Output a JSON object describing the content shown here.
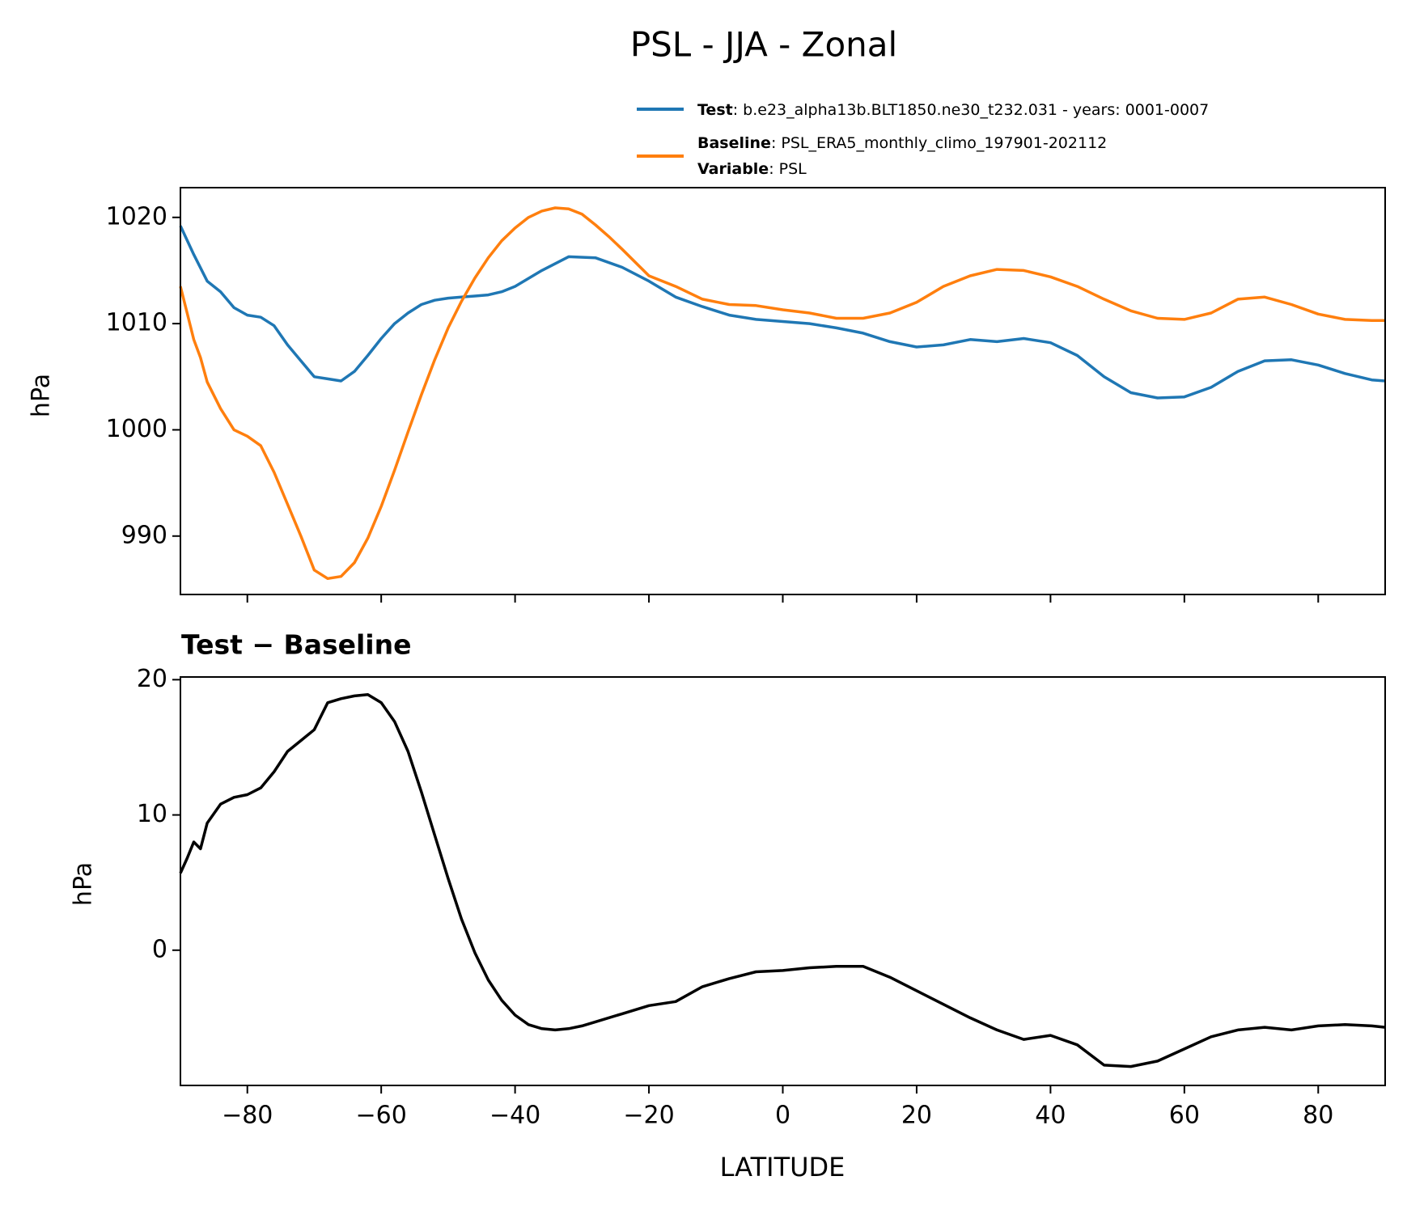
{
  "figure": {
    "title": "PSL - JJA - Zonal"
  },
  "legend": {
    "test_label": "Test",
    "test_text": ": b.e23_alpha13b.BLT1850.ne30_t232.031 - years: 0001-0007",
    "baseline_label": "Baseline",
    "baseline_text": ": PSL_ERA5_monthly_climo_197901-202112",
    "variable_label": "Variable",
    "variable_text": ": PSL"
  },
  "colors": {
    "test": "#1f77b4",
    "baseline": "#ff7f0e",
    "difference": "#000000"
  },
  "chart_data": [
    {
      "type": "line",
      "xlim": [
        -90,
        90
      ],
      "ylim": [
        984.5,
        1022.8
      ],
      "ylabel": "hPa",
      "yticks": [
        990,
        1000,
        1010,
        1020
      ],
      "xticks": [
        -80,
        -60,
        -40,
        -20,
        0,
        20,
        40,
        60,
        80
      ],
      "legend_position": "above-right",
      "series": [
        {
          "name": "Test",
          "x": [
            -90,
            -88,
            -86,
            -84,
            -82,
            -80,
            -78,
            -76,
            -74,
            -72,
            -70,
            -68,
            -66,
            -64,
            -62,
            -60,
            -58,
            -56,
            -54,
            -52,
            -50,
            -48,
            -46,
            -44,
            -42,
            -40,
            -36,
            -32,
            -28,
            -24,
            -20,
            -16,
            -12,
            -8,
            -4,
            0,
            4,
            8,
            12,
            16,
            20,
            24,
            28,
            32,
            36,
            40,
            44,
            48,
            52,
            56,
            60,
            64,
            68,
            72,
            76,
            80,
            84,
            88,
            90
          ],
          "y": [
            1019.2,
            1016.5,
            1014.0,
            1013.0,
            1011.5,
            1010.8,
            1010.6,
            1009.8,
            1008.0,
            1006.5,
            1005.0,
            1004.8,
            1004.6,
            1005.5,
            1007.0,
            1008.6,
            1010.0,
            1011.0,
            1011.8,
            1012.2,
            1012.4,
            1012.5,
            1012.6,
            1012.7,
            1013.0,
            1013.5,
            1015.0,
            1016.3,
            1016.2,
            1015.3,
            1014.0,
            1012.5,
            1011.6,
            1010.8,
            1010.4,
            1010.2,
            1010.0,
            1009.6,
            1009.1,
            1008.3,
            1007.8,
            1008.0,
            1008.5,
            1008.3,
            1008.6,
            1008.2,
            1007.0,
            1005.0,
            1003.5,
            1003.0,
            1003.1,
            1004.0,
            1005.5,
            1006.5,
            1006.6,
            1006.1,
            1005.3,
            1004.7,
            1004.6
          ]
        },
        {
          "name": "Baseline",
          "x": [
            -90,
            -89,
            -88,
            -87,
            -86,
            -84,
            -82,
            -80,
            -78,
            -76,
            -74,
            -72,
            -70,
            -68,
            -66,
            -64,
            -62,
            -60,
            -58,
            -56,
            -54,
            -52,
            -50,
            -48,
            -46,
            -44,
            -42,
            -40,
            -38,
            -36,
            -34,
            -32,
            -30,
            -28,
            -26,
            -24,
            -20,
            -16,
            -12,
            -8,
            -4,
            0,
            4,
            8,
            12,
            16,
            20,
            24,
            28,
            32,
            36,
            40,
            44,
            48,
            52,
            56,
            60,
            64,
            68,
            72,
            76,
            80,
            84,
            88,
            90
          ],
          "y": [
            1013.5,
            1011.0,
            1008.5,
            1006.8,
            1004.5,
            1002.0,
            1000.0,
            999.4,
            998.5,
            996.0,
            993.0,
            990.0,
            986.8,
            986.0,
            986.2,
            987.5,
            989.8,
            992.8,
            996.2,
            999.8,
            1003.3,
            1006.6,
            1009.6,
            1012.1,
            1014.3,
            1016.2,
            1017.8,
            1019.0,
            1020.0,
            1020.6,
            1020.9,
            1020.8,
            1020.3,
            1019.3,
            1018.2,
            1017.0,
            1014.5,
            1013.5,
            1012.3,
            1011.8,
            1011.7,
            1011.3,
            1011.0,
            1010.5,
            1010.5,
            1011.0,
            1012.0,
            1013.5,
            1014.5,
            1015.1,
            1015.0,
            1014.4,
            1013.5,
            1012.3,
            1011.2,
            1010.5,
            1010.4,
            1011.0,
            1012.3,
            1012.5,
            1011.8,
            1010.9,
            1010.4,
            1010.3,
            1010.3
          ]
        }
      ]
    },
    {
      "type": "line",
      "title": "Test − Baseline",
      "xlim": [
        -90,
        90
      ],
      "ylim": [
        -10,
        20.2
      ],
      "xlabel": "LATITUDE",
      "ylabel": "hPa",
      "yticks": [
        0,
        10,
        20
      ],
      "xticks": [
        -80,
        -60,
        -40,
        -20,
        0,
        20,
        40,
        60,
        80
      ],
      "series": [
        {
          "name": "Test − Baseline",
          "x": [
            -90,
            -89,
            -88,
            -87,
            -86,
            -85,
            -84,
            -82,
            -80,
            -78,
            -76,
            -74,
            -72,
            -70,
            -68,
            -66,
            -64,
            -62,
            -60,
            -58,
            -56,
            -54,
            -52,
            -50,
            -48,
            -46,
            -44,
            -42,
            -40,
            -38,
            -36,
            -34,
            -32,
            -30,
            -28,
            -24,
            -20,
            -16,
            -12,
            -8,
            -4,
            0,
            4,
            8,
            12,
            16,
            20,
            24,
            28,
            32,
            36,
            40,
            44,
            48,
            52,
            56,
            60,
            64,
            68,
            72,
            76,
            80,
            84,
            88,
            90
          ],
          "y": [
            5.7,
            6.8,
            8.0,
            7.5,
            9.4,
            10.1,
            10.8,
            11.3,
            11.5,
            12.0,
            13.2,
            14.7,
            15.5,
            16.3,
            18.3,
            18.6,
            18.8,
            18.9,
            18.3,
            16.9,
            14.7,
            11.7,
            8.5,
            5.3,
            2.3,
            -0.2,
            -2.2,
            -3.7,
            -4.8,
            -5.5,
            -5.8,
            -5.9,
            -5.8,
            -5.6,
            -5.3,
            -4.7,
            -4.1,
            -3.8,
            -2.7,
            -2.1,
            -1.6,
            -1.5,
            -1.3,
            -1.2,
            -1.2,
            -2.0,
            -3.0,
            -4.0,
            -5.0,
            -5.9,
            -6.6,
            -6.3,
            -7.0,
            -8.5,
            -8.6,
            -8.2,
            -7.3,
            -6.4,
            -5.9,
            -5.7,
            -5.9,
            -5.6,
            -5.5,
            -5.6,
            -5.7
          ]
        }
      ]
    }
  ]
}
